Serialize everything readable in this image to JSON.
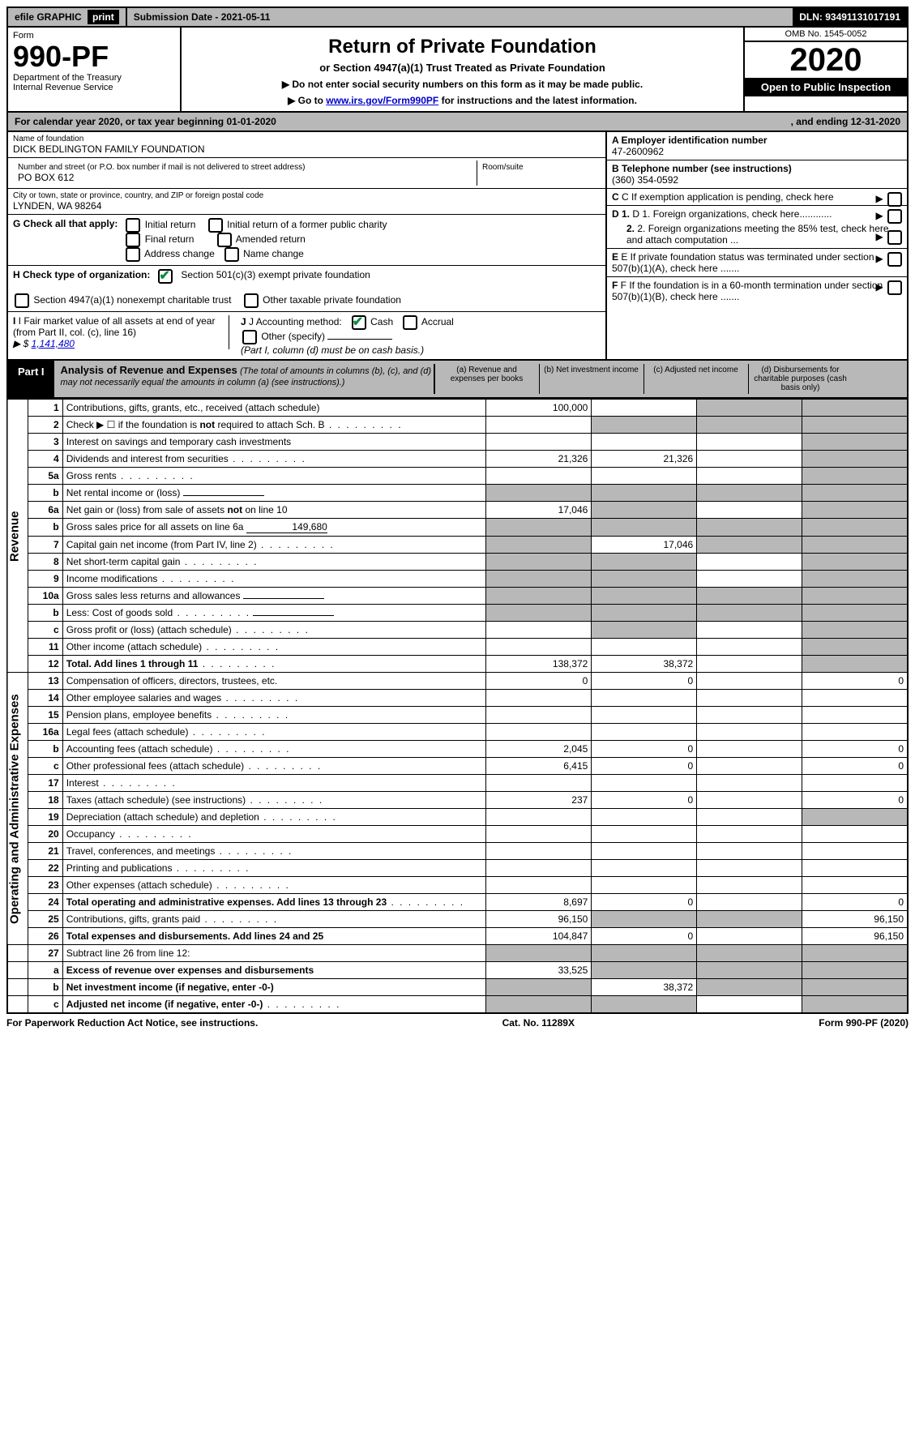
{
  "topbar": {
    "efile": "efile GRAPHIC",
    "print": "print",
    "submission_label": "Submission Date - ",
    "submission_date": "2021-05-11",
    "dln_label": "DLN: ",
    "dln": "93491131017191"
  },
  "header": {
    "form_label": "Form",
    "form_number": "990-PF",
    "dept": "Department of the Treasury",
    "irs": "Internal Revenue Service",
    "title": "Return of Private Foundation",
    "subtitle": "or Section 4947(a)(1) Trust Treated as Private Foundation",
    "instr1": "▶ Do not enter social security numbers on this form as it may be made public.",
    "instr2_prefix": "▶ Go to ",
    "instr2_link": "www.irs.gov/Form990PF",
    "instr2_suffix": " for instructions and the latest information.",
    "omb": "OMB No. 1545-0052",
    "year": "2020",
    "open": "Open to Public Inspection"
  },
  "calendar": {
    "prefix": "For calendar year 2020, or tax year beginning ",
    "begin": "01-01-2020",
    "midfix": ", and ending ",
    "end": "12-31-2020"
  },
  "foundation": {
    "name_label": "Name of foundation",
    "name": "DICK BEDLINGTON FAMILY FOUNDATION",
    "street_label": "Number and street (or P.O. box number if mail is not delivered to street address)",
    "street": "PO BOX 612",
    "room_label": "Room/suite",
    "room": "",
    "city_label": "City or town, state or province, country, and ZIP or foreign postal code",
    "city": "LYNDEN, WA  98264"
  },
  "right_info": {
    "A_label": "A Employer identification number",
    "A_value": "47-2600962",
    "B_label": "B Telephone number (see instructions)",
    "B_value": "(360) 354-0592",
    "C_label": "C If exemption application is pending, check here",
    "D1_label": "D 1. Foreign organizations, check here............",
    "D2_label": "2. Foreign organizations meeting the 85% test, check here and attach computation ...",
    "E_label": "E If private foundation status was terminated under section 507(b)(1)(A), check here .......",
    "F_label": "F If the foundation is in a 60-month termination under section 507(b)(1)(B), check here ......."
  },
  "section_G": {
    "label": "G Check all that apply:",
    "opts": {
      "initial_return": "Initial return",
      "initial_former": "Initial return of a former public charity",
      "final_return": "Final return",
      "amended": "Amended return",
      "address_change": "Address change",
      "name_change": "Name change"
    }
  },
  "section_H": {
    "label": "H Check type of organization:",
    "opt501c3": "Section 501(c)(3) exempt private foundation",
    "opt4947": "Section 4947(a)(1) nonexempt charitable trust",
    "opt_other": "Other taxable private foundation"
  },
  "section_I": {
    "label": "I Fair market value of all assets at end of year (from Part II, col. (c), line 16)",
    "prefix": "▶ $",
    "value": "1,141,480"
  },
  "section_J": {
    "label": "J Accounting method:",
    "cash": "Cash",
    "accrual": "Accrual",
    "other": "Other (specify)",
    "note": "(Part I, column (d) must be on cash basis.)"
  },
  "part1": {
    "tag": "Part I",
    "title": "Analysis of Revenue and Expenses",
    "note": "(The total of amounts in columns (b), (c), and (d) may not necessarily equal the amounts in column (a) (see instructions).)",
    "col_a": "(a) Revenue and expenses per books",
    "col_b": "(b) Net investment income",
    "col_c": "(c) Adjusted net income",
    "col_d": "(d) Disbursements for charitable purposes (cash basis only)"
  },
  "sections": {
    "revenue": "Revenue",
    "expenses": "Operating and Administrative Expenses"
  },
  "rows": [
    {
      "sec": "rev",
      "n": "1",
      "desc": "Contributions, gifts, grants, etc., received (attach schedule)",
      "a": "100,000",
      "b": "",
      "c": "shade",
      "d": "shade"
    },
    {
      "sec": "rev",
      "n": "2",
      "desc": "Check ▶ ☐ if the foundation is not required to attach Sch. B",
      "dots": true,
      "a": "",
      "b": "shade",
      "c": "shade",
      "d": "shade"
    },
    {
      "sec": "rev",
      "n": "3",
      "desc": "Interest on savings and temporary cash investments",
      "a": "",
      "b": "",
      "c": "",
      "d": "shade"
    },
    {
      "sec": "rev",
      "n": "4",
      "desc": "Dividends and interest from securities",
      "dots": true,
      "a": "21,326",
      "b": "21,326",
      "c": "",
      "d": "shade"
    },
    {
      "sec": "rev",
      "n": "5a",
      "desc": "Gross rents",
      "dots": true,
      "a": "",
      "b": "",
      "c": "",
      "d": "shade"
    },
    {
      "sec": "rev",
      "n": "b",
      "desc": "Net rental income or (loss)",
      "inline": "",
      "a": "shade",
      "b": "shade",
      "c": "shade",
      "d": "shade"
    },
    {
      "sec": "rev",
      "n": "6a",
      "desc": "Net gain or (loss) from sale of assets not on line 10",
      "a": "17,046",
      "b": "shade",
      "c": "",
      "d": "shade"
    },
    {
      "sec": "rev",
      "n": "b",
      "desc": "Gross sales price for all assets on line 6a",
      "inline": "149,680",
      "a": "shade",
      "b": "shade",
      "c": "shade",
      "d": "shade"
    },
    {
      "sec": "rev",
      "n": "7",
      "desc": "Capital gain net income (from Part IV, line 2)",
      "dots": true,
      "a": "shade",
      "b": "17,046",
      "c": "shade",
      "d": "shade"
    },
    {
      "sec": "rev",
      "n": "8",
      "desc": "Net short-term capital gain",
      "dots": true,
      "a": "shade",
      "b": "shade",
      "c": "",
      "d": "shade"
    },
    {
      "sec": "rev",
      "n": "9",
      "desc": "Income modifications",
      "dots": true,
      "a": "shade",
      "b": "shade",
      "c": "",
      "d": "shade"
    },
    {
      "sec": "rev",
      "n": "10a",
      "desc": "Gross sales less returns and allowances",
      "inline": "",
      "a": "shade",
      "b": "shade",
      "c": "shade",
      "d": "shade"
    },
    {
      "sec": "rev",
      "n": "b",
      "desc": "Less: Cost of goods sold",
      "dots": true,
      "inline": "",
      "a": "shade",
      "b": "shade",
      "c": "shade",
      "d": "shade"
    },
    {
      "sec": "rev",
      "n": "c",
      "desc": "Gross profit or (loss) (attach schedule)",
      "dots": true,
      "a": "",
      "b": "shade",
      "c": "",
      "d": "shade"
    },
    {
      "sec": "rev",
      "n": "11",
      "desc": "Other income (attach schedule)",
      "dots": true,
      "a": "",
      "b": "",
      "c": "",
      "d": "shade"
    },
    {
      "sec": "rev",
      "n": "12",
      "desc": "Total. Add lines 1 through 11",
      "dots": true,
      "bold": true,
      "a": "138,372",
      "b": "38,372",
      "c": "",
      "d": "shade"
    },
    {
      "sec": "exp",
      "n": "13",
      "desc": "Compensation of officers, directors, trustees, etc.",
      "a": "0",
      "b": "0",
      "c": "",
      "d": "0"
    },
    {
      "sec": "exp",
      "n": "14",
      "desc": "Other employee salaries and wages",
      "dots": true,
      "a": "",
      "b": "",
      "c": "",
      "d": ""
    },
    {
      "sec": "exp",
      "n": "15",
      "desc": "Pension plans, employee benefits",
      "dots": true,
      "a": "",
      "b": "",
      "c": "",
      "d": ""
    },
    {
      "sec": "exp",
      "n": "16a",
      "desc": "Legal fees (attach schedule)",
      "dots": true,
      "a": "",
      "b": "",
      "c": "",
      "d": ""
    },
    {
      "sec": "exp",
      "n": "b",
      "desc": "Accounting fees (attach schedule)",
      "dots": true,
      "a": "2,045",
      "b": "0",
      "c": "",
      "d": "0"
    },
    {
      "sec": "exp",
      "n": "c",
      "desc": "Other professional fees (attach schedule)",
      "dots": true,
      "a": "6,415",
      "b": "0",
      "c": "",
      "d": "0"
    },
    {
      "sec": "exp",
      "n": "17",
      "desc": "Interest",
      "dots": true,
      "a": "",
      "b": "",
      "c": "",
      "d": ""
    },
    {
      "sec": "exp",
      "n": "18",
      "desc": "Taxes (attach schedule) (see instructions)",
      "dots": true,
      "a": "237",
      "b": "0",
      "c": "",
      "d": "0"
    },
    {
      "sec": "exp",
      "n": "19",
      "desc": "Depreciation (attach schedule) and depletion",
      "dots": true,
      "a": "",
      "b": "",
      "c": "",
      "d": "shade"
    },
    {
      "sec": "exp",
      "n": "20",
      "desc": "Occupancy",
      "dots": true,
      "a": "",
      "b": "",
      "c": "",
      "d": ""
    },
    {
      "sec": "exp",
      "n": "21",
      "desc": "Travel, conferences, and meetings",
      "dots": true,
      "a": "",
      "b": "",
      "c": "",
      "d": ""
    },
    {
      "sec": "exp",
      "n": "22",
      "desc": "Printing and publications",
      "dots": true,
      "a": "",
      "b": "",
      "c": "",
      "d": ""
    },
    {
      "sec": "exp",
      "n": "23",
      "desc": "Other expenses (attach schedule)",
      "dots": true,
      "a": "",
      "b": "",
      "c": "",
      "d": ""
    },
    {
      "sec": "exp",
      "n": "24",
      "desc": "Total operating and administrative expenses. Add lines 13 through 23",
      "dots": true,
      "bold": true,
      "a": "8,697",
      "b": "0",
      "c": "",
      "d": "0"
    },
    {
      "sec": "exp",
      "n": "25",
      "desc": "Contributions, gifts, grants paid",
      "dots": true,
      "a": "96,150",
      "b": "shade",
      "c": "shade",
      "d": "96,150"
    },
    {
      "sec": "exp",
      "n": "26",
      "desc": "Total expenses and disbursements. Add lines 24 and 25",
      "bold": true,
      "a": "104,847",
      "b": "0",
      "c": "",
      "d": "96,150"
    },
    {
      "sec": "end",
      "n": "27",
      "desc": "Subtract line 26 from line 12:",
      "a": "shade",
      "b": "shade",
      "c": "shade",
      "d": "shade"
    },
    {
      "sec": "end",
      "n": "a",
      "desc": "Excess of revenue over expenses and disbursements",
      "bold": true,
      "a": "33,525",
      "b": "shade",
      "c": "shade",
      "d": "shade"
    },
    {
      "sec": "end",
      "n": "b",
      "desc": "Net investment income (if negative, enter -0-)",
      "bold": true,
      "a": "shade",
      "b": "38,372",
      "c": "shade",
      "d": "shade"
    },
    {
      "sec": "end",
      "n": "c",
      "desc": "Adjusted net income (if negative, enter -0-)",
      "dots": true,
      "bold": true,
      "a": "shade",
      "b": "shade",
      "c": "",
      "d": "shade"
    }
  ],
  "footer": {
    "left": "For Paperwork Reduction Act Notice, see instructions.",
    "mid": "Cat. No. 11289X",
    "right": "Form 990-PF (2020)"
  },
  "style": {
    "shade_color": "#b8b8b8",
    "link_color": "#0000cc",
    "check_color": "#0b8a3e"
  }
}
